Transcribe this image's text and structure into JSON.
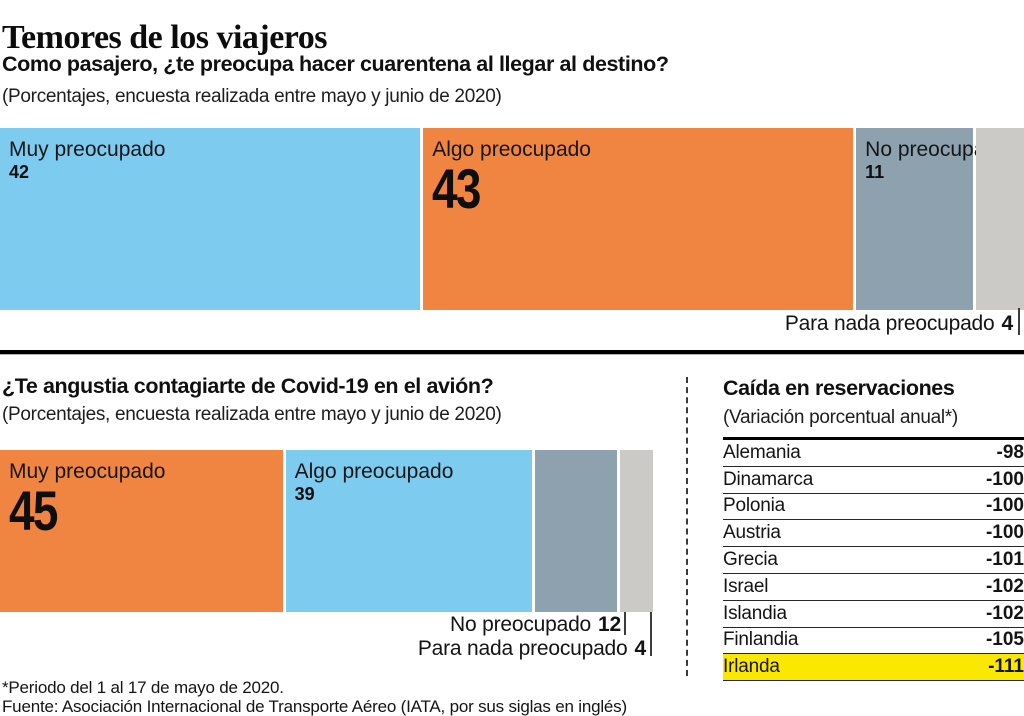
{
  "page_title": "Temores de los viajeros",
  "colors": {
    "blue": "#7dcbee",
    "orange": "#ef8541",
    "gray_blue": "#8da1af",
    "light_gray": "#cbcac7",
    "highlight_yellow": "#fbe800"
  },
  "chart_data": [
    {
      "type": "bar",
      "layout": "stacked-horizontal",
      "question": "Como pasajero, ¿te preocupa hacer cuarentena al llegar al destino?",
      "subtitle": "(Porcentajes, encuesta realizada entre mayo y junio de 2020)",
      "xlim": [
        0,
        100
      ],
      "segments": [
        {
          "label": "Muy preocupado",
          "value": 42,
          "color": "#7dcbee",
          "value_style": "small",
          "label_pos": "inside"
        },
        {
          "label": "Algo preocupado",
          "value": 43,
          "color": "#ef8541",
          "value_style": "big",
          "label_pos": "inside"
        },
        {
          "label": "No preocupado",
          "value": 11,
          "color": "#8da1af",
          "value_style": "small",
          "label_pos": "inside"
        },
        {
          "label": "Para nada preocupado",
          "value": 4,
          "color": "#cbcac7",
          "value_style": "small",
          "label_pos": "below"
        }
      ]
    },
    {
      "type": "bar",
      "layout": "stacked-horizontal",
      "question": "¿Te angustia contagiarte de Covid-19 en el avión?",
      "subtitle": "(Porcentajes, encuesta realizada entre mayo y junio de 2020)",
      "xlim": [
        0,
        100
      ],
      "segments": [
        {
          "label": "Muy preocupado",
          "value": 45,
          "color": "#ef8541",
          "value_style": "big",
          "label_pos": "inside"
        },
        {
          "label": "Algo preocupado",
          "value": 39,
          "color": "#7dcbee",
          "value_style": "small",
          "label_pos": "inside"
        },
        {
          "label": "No preocupado",
          "value": 12,
          "color": "#8da1af",
          "value_style": "small",
          "label_pos": "below"
        },
        {
          "label": "Para nada preocupado",
          "value": 4,
          "color": "#cbcac7",
          "value_style": "small",
          "label_pos": "below"
        }
      ]
    },
    {
      "type": "table",
      "title": "Caída en reservaciones",
      "subtitle": "(Variación porcentual anual*)",
      "rows": [
        {
          "label": "Alemania",
          "value": "-98",
          "highlight": false
        },
        {
          "label": "Dinamarca",
          "value": "-100",
          "highlight": false
        },
        {
          "label": "Polonia",
          "value": "-100",
          "highlight": false
        },
        {
          "label": "Austria",
          "value": "-100",
          "highlight": false
        },
        {
          "label": "Grecia",
          "value": "-101",
          "highlight": false
        },
        {
          "label": "Israel",
          "value": "-102",
          "highlight": false
        },
        {
          "label": "Islandia",
          "value": "-102",
          "highlight": false
        },
        {
          "label": "Finlandia",
          "value": "-105",
          "highlight": false
        },
        {
          "label": "Irlanda",
          "value": "-111",
          "highlight": true
        }
      ]
    }
  ],
  "footer": {
    "note": "*Periodo del 1 al 17 de mayo de 2020.",
    "source": "Fuente: Asociación Internacional de Transporte Aéreo (IATA, por sus siglas en inglés)"
  }
}
